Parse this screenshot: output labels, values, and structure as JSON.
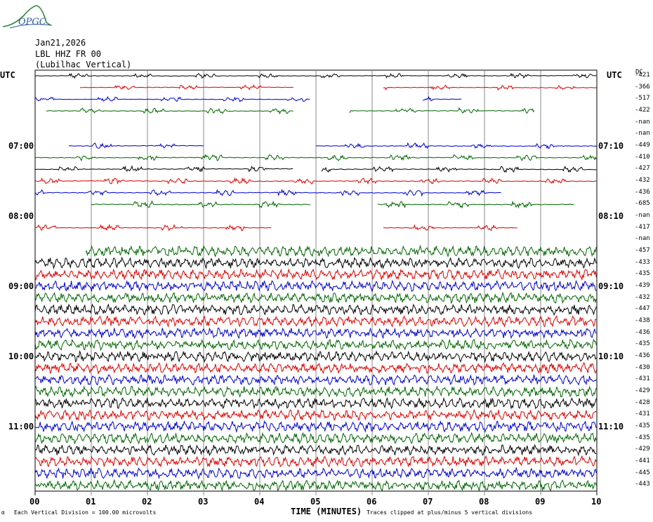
{
  "logo": {
    "text": "OPGC"
  },
  "header": {
    "date": "Jan21,2026",
    "station": "LBL HHZ FR 00",
    "location": "(Lubilhac Vertical)"
  },
  "left_axis": {
    "title": "UTC",
    "hour_labels": [
      "07:00",
      "08:00",
      "09:00",
      "10:00",
      "11:00"
    ]
  },
  "right_axis": {
    "title": "UTC",
    "dc_title": "DC",
    "hour_labels": [
      "07:10",
      "08:10",
      "09:10",
      "10:10",
      "11:10"
    ]
  },
  "footer": {
    "division_note": "Each Vertical Division =  100.00 microvolts",
    "xlabel": "TIME (MINUTES)",
    "clip_note": "Traces clipped at plus/minus 5 vertical divisions"
  },
  "chart_data": {
    "type": "line",
    "title": "",
    "xlabel": "TIME (MINUTES)",
    "ylabel": "UTC",
    "xlim": [
      0,
      10
    ],
    "x_ticks": [
      "00",
      "01",
      "02",
      "03",
      "04",
      "05",
      "06",
      "07",
      "08",
      "09",
      "10"
    ],
    "grid": true,
    "colors": [
      "#000000",
      "#dd0000",
      "#0000cc",
      "#006600"
    ],
    "traces": [
      {
        "row": 0,
        "dc": "-421",
        "color": "#000000",
        "segments": [
          [
            0.0,
            10.0
          ]
        ],
        "amplitude": 0.2
      },
      {
        "row": 1,
        "dc": "-366",
        "color": "#dd0000",
        "segments": [
          [
            0.8,
            4.6
          ],
          [
            6.2,
            10.0
          ]
        ],
        "amplitude": 0.2
      },
      {
        "row": 2,
        "dc": "-517",
        "color": "#0000cc",
        "segments": [
          [
            0.0,
            4.9
          ],
          [
            6.9,
            7.6
          ]
        ],
        "amplitude": 0.2
      },
      {
        "row": 3,
        "dc": "-422",
        "color": "#006600",
        "segments": [
          [
            0.2,
            4.6
          ],
          [
            5.6,
            8.9
          ]
        ],
        "amplitude": 0.25
      },
      {
        "row": 4,
        "dc": "-nan",
        "color": "#000000",
        "segments": [],
        "amplitude": 0
      },
      {
        "row": 5,
        "dc": "-nan",
        "color": "#dd0000",
        "segments": [],
        "amplitude": 0
      },
      {
        "row": 6,
        "dc": "-449",
        "color": "#0000cc",
        "segments": [
          [
            0.6,
            3.0
          ],
          [
            5.0,
            10.0
          ]
        ],
        "amplitude": 0.25
      },
      {
        "row": 7,
        "dc": "-410",
        "color": "#006600",
        "segments": [
          [
            0.0,
            10.0
          ]
        ],
        "amplitude": 0.25
      },
      {
        "row": 8,
        "dc": "-427",
        "color": "#000000",
        "segments": [
          [
            0.0,
            4.6
          ],
          [
            5.1,
            10.0
          ]
        ],
        "amplitude": 0.25
      },
      {
        "row": 9,
        "dc": "-432",
        "color": "#dd0000",
        "segments": [
          [
            0.0,
            10.0
          ]
        ],
        "amplitude": 0.25
      },
      {
        "row": 10,
        "dc": "-436",
        "color": "#0000cc",
        "segments": [
          [
            0.0,
            8.3
          ]
        ],
        "amplitude": 0.25
      },
      {
        "row": 11,
        "dc": "-685",
        "color": "#006600",
        "segments": [
          [
            1.0,
            4.9
          ],
          [
            6.1,
            9.6
          ]
        ],
        "amplitude": 0.3
      },
      {
        "row": 12,
        "dc": "-nan",
        "color": "#000000",
        "segments": [],
        "amplitude": 0
      },
      {
        "row": 13,
        "dc": "-417",
        "color": "#dd0000",
        "segments": [
          [
            0.0,
            4.2
          ],
          [
            6.2,
            8.6
          ]
        ],
        "amplitude": 0.25
      },
      {
        "row": 14,
        "dc": "-nan",
        "color": "#0000cc",
        "segments": [],
        "amplitude": 0
      },
      {
        "row": 15,
        "dc": "-457",
        "color": "#006600",
        "segments": [
          [
            0.9,
            10.0
          ]
        ],
        "amplitude": 0.45
      },
      {
        "row": 16,
        "dc": "-433",
        "color": "#000000",
        "segments": [
          [
            0.0,
            10.0
          ]
        ],
        "amplitude": 0.45
      },
      {
        "row": 17,
        "dc": "-435",
        "color": "#dd0000",
        "segments": [
          [
            0.0,
            10.0
          ]
        ],
        "amplitude": 0.45
      },
      {
        "row": 18,
        "dc": "-439",
        "color": "#0000cc",
        "segments": [
          [
            0.0,
            10.0
          ]
        ],
        "amplitude": 0.45
      },
      {
        "row": 19,
        "dc": "-432",
        "color": "#006600",
        "segments": [
          [
            0.0,
            10.0
          ]
        ],
        "amplitude": 0.45
      },
      {
        "row": 20,
        "dc": "-447",
        "color": "#000000",
        "segments": [
          [
            0.0,
            10.0
          ]
        ],
        "amplitude": 0.45
      },
      {
        "row": 21,
        "dc": "-438",
        "color": "#dd0000",
        "segments": [
          [
            0.0,
            10.0
          ]
        ],
        "amplitude": 0.45
      },
      {
        "row": 22,
        "dc": "-436",
        "color": "#0000cc",
        "segments": [
          [
            0.0,
            10.0
          ]
        ],
        "amplitude": 0.45
      },
      {
        "row": 23,
        "dc": "-435",
        "color": "#006600",
        "segments": [
          [
            0.0,
            10.0
          ]
        ],
        "amplitude": 0.45
      },
      {
        "row": 24,
        "dc": "-436",
        "color": "#000000",
        "segments": [
          [
            0.0,
            10.0
          ]
        ],
        "amplitude": 0.45
      },
      {
        "row": 25,
        "dc": "-430",
        "color": "#dd0000",
        "segments": [
          [
            0.0,
            10.0
          ]
        ],
        "amplitude": 0.45
      },
      {
        "row": 26,
        "dc": "-431",
        "color": "#0000cc",
        "segments": [
          [
            0.0,
            10.0
          ]
        ],
        "amplitude": 0.45
      },
      {
        "row": 27,
        "dc": "-429",
        "color": "#006600",
        "segments": [
          [
            0.0,
            10.0
          ]
        ],
        "amplitude": 0.45
      },
      {
        "row": 28,
        "dc": "-428",
        "color": "#000000",
        "segments": [
          [
            0.0,
            10.0
          ]
        ],
        "amplitude": 0.45
      },
      {
        "row": 29,
        "dc": "-431",
        "color": "#dd0000",
        "segments": [
          [
            0.0,
            10.0
          ]
        ],
        "amplitude": 0.45
      },
      {
        "row": 30,
        "dc": "-435",
        "color": "#0000cc",
        "segments": [
          [
            0.0,
            10.0
          ]
        ],
        "amplitude": 0.45
      },
      {
        "row": 31,
        "dc": "-435",
        "color": "#006600",
        "segments": [
          [
            0.0,
            10.0
          ]
        ],
        "amplitude": 0.45
      },
      {
        "row": 32,
        "dc": "-429",
        "color": "#000000",
        "segments": [
          [
            0.0,
            10.0
          ]
        ],
        "amplitude": 0.45
      },
      {
        "row": 33,
        "dc": "-441",
        "color": "#dd0000",
        "segments": [
          [
            0.0,
            10.0
          ]
        ],
        "amplitude": 0.45
      },
      {
        "row": 34,
        "dc": "-445",
        "color": "#0000cc",
        "segments": [
          [
            0.0,
            10.0
          ]
        ],
        "amplitude": 0.45
      },
      {
        "row": 35,
        "dc": "-443",
        "color": "#006600",
        "segments": [
          [
            0.0,
            10.0
          ]
        ],
        "amplitude": 0.45
      }
    ]
  }
}
